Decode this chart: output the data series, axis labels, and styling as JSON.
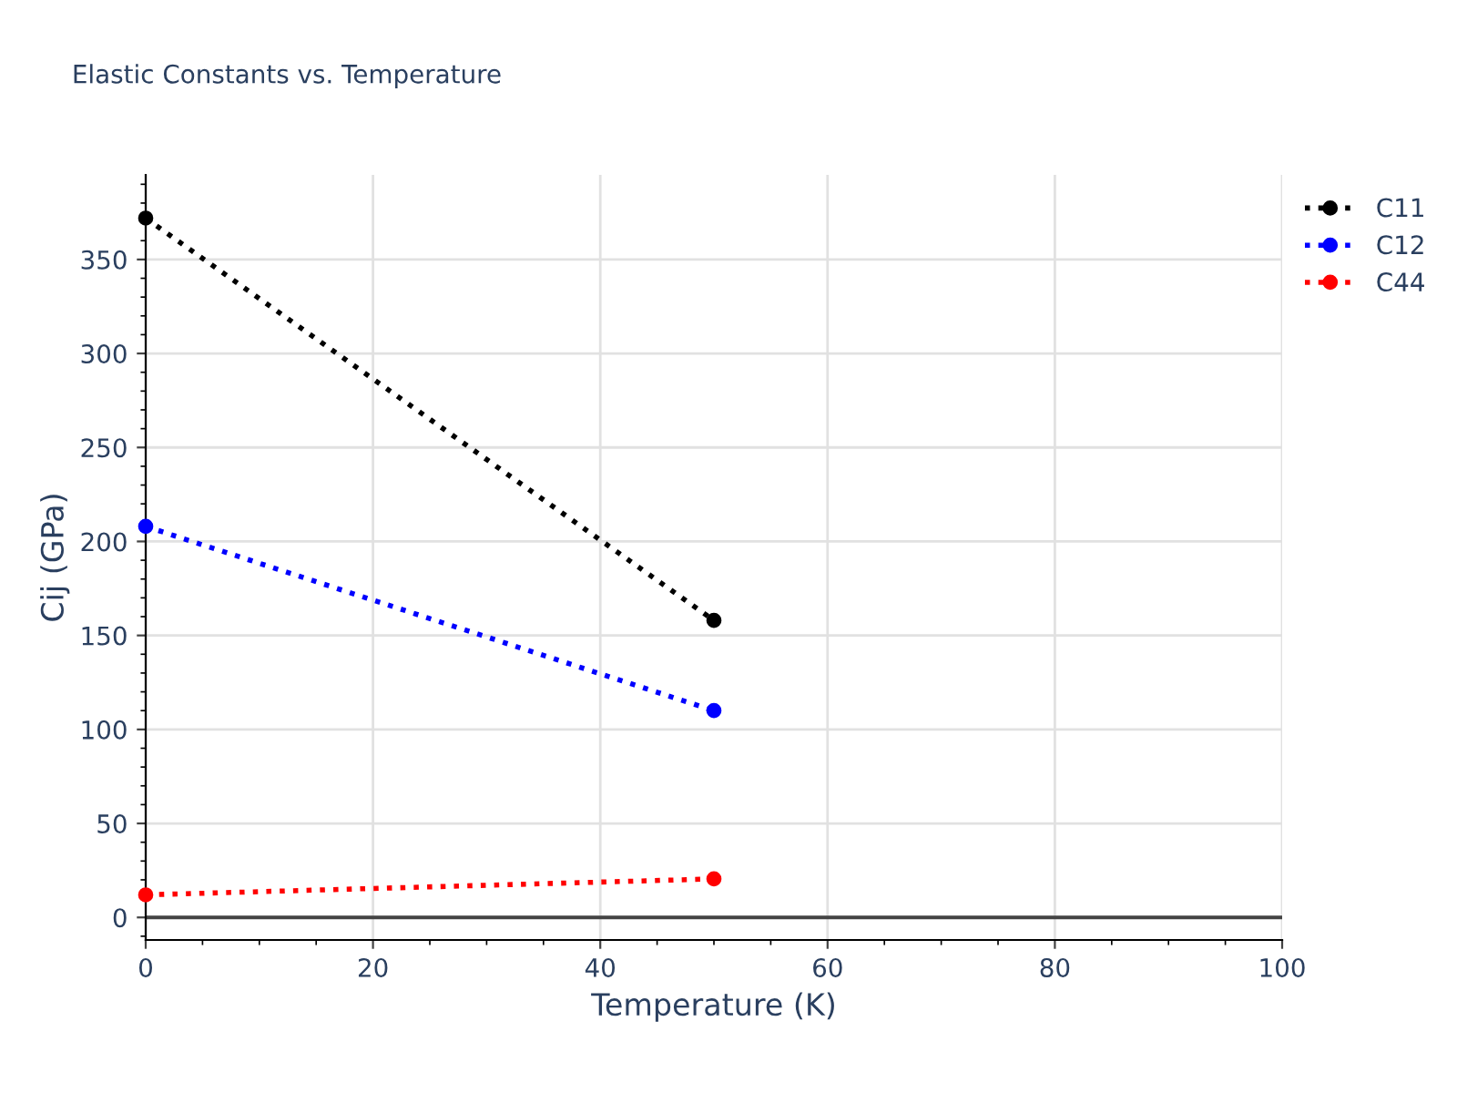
{
  "chart_data": {
    "type": "line",
    "title": "Elastic Constants vs. Temperature",
    "xlabel": "Temperature (K)",
    "ylabel": "Cij (GPa)",
    "x": [
      0,
      50
    ],
    "series": [
      {
        "name": "C11",
        "color": "#000000",
        "values": [
          372,
          158
        ]
      },
      {
        "name": "C12",
        "color": "#0000ff",
        "values": [
          208,
          110
        ]
      },
      {
        "name": "C44",
        "color": "#ff0000",
        "values": [
          12,
          20.5
        ]
      }
    ],
    "xlim": [
      0,
      100
    ],
    "xticks": [
      0,
      20,
      40,
      60,
      80,
      100
    ],
    "ylim": [
      -12,
      395
    ],
    "yticks": [
      0,
      50,
      100,
      150,
      200,
      250,
      300,
      350
    ],
    "grid": true,
    "legend": "top right",
    "marker": "circle",
    "line_style": "dotted"
  }
}
